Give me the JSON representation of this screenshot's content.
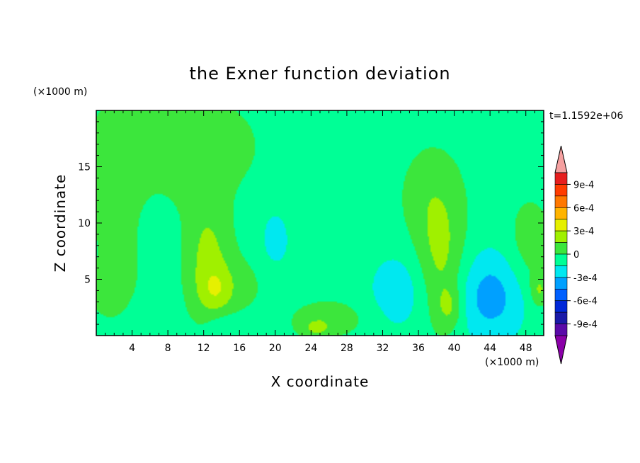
{
  "chart_data": {
    "type": "heatmap",
    "title": "the Exner function deviation",
    "xlabel": "X coordinate",
    "ylabel": "Z coordinate",
    "x_unit": "(×1000 m)",
    "y_unit": "(×1000 m)",
    "time_label": "t=1.1592e+06",
    "xlim": [
      0,
      50
    ],
    "ylim": [
      0,
      20
    ],
    "x_ticks": [
      4,
      8,
      12,
      16,
      20,
      24,
      28,
      32,
      36,
      40,
      44,
      48
    ],
    "y_ticks": [
      5,
      10,
      15
    ],
    "colorbar": {
      "labels": [
        {
          "value": 0.0009,
          "text": "9e-4"
        },
        {
          "value": 0.0006,
          "text": "6e-4"
        },
        {
          "value": 0.0003,
          "text": "3e-4"
        },
        {
          "value": 0,
          "text": "0"
        },
        {
          "value": -0.0003,
          "text": "-3e-4"
        },
        {
          "value": -0.0006,
          "text": "-6e-4"
        },
        {
          "value": -0.0009,
          "text": "-9e-4"
        }
      ],
      "levels": [
        -0.00105,
        -0.0009,
        -0.00075,
        -0.0006,
        -0.00045,
        -0.0003,
        -0.00015,
        0,
        0.00015,
        0.0003,
        0.00045,
        0.0006,
        0.00075,
        0.0009,
        0.00105
      ],
      "colors": [
        "#8a00a8",
        "#5a0aa8",
        "#1a1aa8",
        "#0028d8",
        "#0060ff",
        "#00a0ff",
        "#00e8f0",
        "#00ff96",
        "#3ce63c",
        "#a0f000",
        "#e6f000",
        "#ffb400",
        "#ff7800",
        "#ff3c00",
        "#e61e1e",
        "#f5a0a0"
      ]
    },
    "field": {
      "background_value": -7e-05,
      "features": [
        {
          "x": 6,
          "z": 16,
          "sx": 6,
          "sz": 4,
          "amp": 0.00013
        },
        {
          "x": 12,
          "z": 17,
          "sx": 5,
          "sz": 3,
          "amp": 0.0001
        },
        {
          "x": 3,
          "z": 9,
          "sx": 2.5,
          "sz": 6,
          "amp": 0.00011
        },
        {
          "x": 6.5,
          "z": 10,
          "sx": 1.5,
          "sz": 2.5,
          "amp": -0.00012
        },
        {
          "x": 12.5,
          "z": 6.5,
          "sx": 1.8,
          "sz": 4,
          "amp": 0.00026
        },
        {
          "x": 13.5,
          "z": 4,
          "sx": 1.3,
          "sz": 1.3,
          "amp": 0.00015
        },
        {
          "x": 16,
          "z": 4.5,
          "sx": 2.5,
          "sz": 2,
          "amp": 0.0001
        },
        {
          "x": 20,
          "z": 8.5,
          "sx": 1.2,
          "sz": 2,
          "amp": -0.00015
        },
        {
          "x": 26,
          "z": 1.5,
          "sx": 3,
          "sz": 1.2,
          "amp": 0.00016
        },
        {
          "x": 24.5,
          "z": 0.6,
          "sx": 1.2,
          "sz": 0.6,
          "amp": 0.00016
        },
        {
          "x": 34,
          "z": 4,
          "sx": 2.5,
          "sz": 2.5,
          "amp": -0.00018
        },
        {
          "x": 37.5,
          "z": 12.5,
          "sx": 2.5,
          "sz": 3.2,
          "amp": 0.00015
        },
        {
          "x": 38.5,
          "z": 6,
          "sx": 2,
          "sz": 4,
          "amp": 0.00026
        },
        {
          "x": 39.5,
          "z": 2.5,
          "sx": 1,
          "sz": 1.3,
          "amp": 0.00018
        },
        {
          "x": 44,
          "z": 3.5,
          "sx": 2.8,
          "sz": 2.8,
          "amp": -0.0003
        },
        {
          "x": 48.5,
          "z": 8,
          "sx": 1.8,
          "sz": 3,
          "amp": 0.00016
        },
        {
          "x": 49.5,
          "z": 4,
          "sx": 0.7,
          "sz": 1,
          "amp": 0.00022
        },
        {
          "x": 14,
          "z": 1,
          "sx": 1.5,
          "sz": 0.8,
          "amp": -0.0001
        },
        {
          "x": 1,
          "z": 4,
          "sx": 1.2,
          "sz": 1.5,
          "amp": 0.0001
        }
      ]
    }
  }
}
